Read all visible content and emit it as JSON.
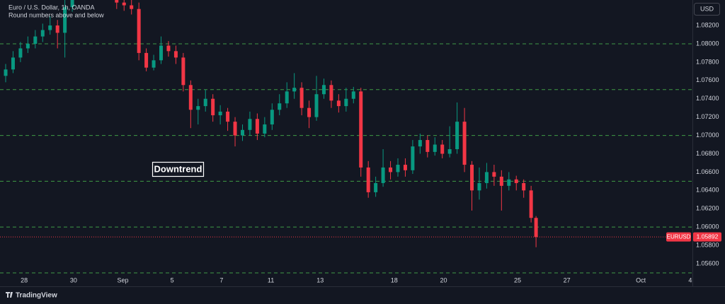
{
  "chart_data": {
    "type": "candlestick",
    "title": "Euro / U.S. Dollar, 1h, OANDA",
    "subtitle": "Round numbers above and below",
    "currency": "USD",
    "annotation": "Downtrend",
    "symbol": "EURUSD",
    "brand": "TradingView",
    "last_price": 1.05892,
    "up_color": "#089981",
    "down_color": "#f23645",
    "level_color": "#3f9a45",
    "last_price_color": "#f23645",
    "levels": [
      1.08,
      1.075,
      1.07,
      1.065,
      1.06,
      1.055
    ],
    "x": [
      -0.75,
      -0.45,
      -0.15,
      0.15,
      0.45,
      0.75,
      1.05,
      1.35,
      1.65,
      1.95,
      2.25,
      2.55,
      2.85,
      3.15,
      3.45,
      3.75,
      4.05,
      4.35,
      4.65,
      4.95,
      5.25,
      5.55,
      5.85,
      6.15,
      6.45,
      6.75,
      7.05,
      7.35,
      7.65,
      7.95,
      8.25,
      8.55,
      8.85,
      9.15,
      9.45,
      9.75,
      10.05,
      10.35,
      10.65,
      10.95,
      11.25,
      11.55,
      11.85,
      12.15,
      12.45,
      12.75,
      13.05,
      13.35,
      13.65,
      13.95,
      14.25,
      14.55,
      14.85,
      15.15,
      15.45,
      15.75,
      16.05,
      16.35,
      16.65,
      16.95,
      17.25,
      17.55,
      17.85,
      18.15,
      18.45,
      18.75,
      19.05,
      19.35,
      19.65,
      19.95,
      20.25,
      20.55,
      20.75
    ],
    "open": [
      1.0765,
      1.0772,
      1.0785,
      1.0795,
      1.08,
      1.0808,
      1.0815,
      1.082,
      1.0812,
      1.084,
      1.086,
      1.0865,
      1.087,
      1.0862,
      1.0868,
      1.0858,
      1.0845,
      1.0842,
      1.0838,
      1.079,
      1.0774,
      1.0782,
      1.0798,
      1.0792,
      1.0785,
      1.0755,
      1.0728,
      1.0732,
      1.074,
      1.0722,
      1.0726,
      1.0715,
      1.07,
      1.0706,
      1.0718,
      1.0702,
      1.0712,
      1.0728,
      1.0735,
      1.0748,
      1.0752,
      1.073,
      1.072,
      1.0745,
      1.0755,
      1.0738,
      1.0732,
      1.074,
      1.0748,
      1.0665,
      1.0638,
      1.0648,
      1.0665,
      1.066,
      1.0668,
      1.0662,
      1.0688,
      1.0695,
      1.0682,
      1.069,
      1.068,
      1.0685,
      1.0715,
      1.0668,
      1.064,
      1.0648,
      1.066,
      1.0655,
      1.0645,
      1.0652,
      1.0648,
      1.064,
      1.061
    ],
    "high": [
      1.0778,
      1.0792,
      1.0802,
      1.0808,
      1.0815,
      1.0822,
      1.083,
      1.0826,
      1.0852,
      1.0866,
      1.0872,
      1.0878,
      1.0875,
      1.0874,
      1.0872,
      1.0862,
      1.0852,
      1.085,
      1.0845,
      1.0795,
      1.0788,
      1.0808,
      1.0803,
      1.0798,
      1.079,
      1.076,
      1.074,
      1.075,
      1.0745,
      1.0733,
      1.073,
      1.072,
      1.0712,
      1.0726,
      1.0724,
      1.072,
      1.0735,
      1.0745,
      1.0758,
      1.0768,
      1.0758,
      1.0738,
      1.0765,
      1.0762,
      1.076,
      1.0745,
      1.0752,
      1.0753,
      1.0752,
      1.0672,
      1.0655,
      1.0685,
      1.0672,
      1.0675,
      1.0675,
      1.0695,
      1.0702,
      1.07,
      1.0698,
      1.0695,
      1.071,
      1.0736,
      1.073,
      1.0672,
      1.0665,
      1.067,
      1.0668,
      1.0662,
      1.066,
      1.0656,
      1.0652,
      1.0645,
      1.0612
    ],
    "low": [
      1.0758,
      1.0768,
      1.078,
      1.079,
      1.0795,
      1.0802,
      1.081,
      1.0795,
      1.0785,
      1.0835,
      1.0854,
      1.086,
      1.0856,
      1.0857,
      1.0852,
      1.0838,
      1.0836,
      1.0832,
      1.0782,
      1.077,
      1.0771,
      1.0778,
      1.0786,
      1.0778,
      1.0748,
      1.0708,
      1.0712,
      1.0726,
      1.0715,
      1.0712,
      1.0705,
      1.0688,
      1.0694,
      1.07,
      1.0695,
      1.0698,
      1.0706,
      1.0722,
      1.073,
      1.074,
      1.0722,
      1.0708,
      1.0716,
      1.074,
      1.073,
      1.0725,
      1.0726,
      1.0735,
      1.0655,
      1.0632,
      1.0633,
      1.0644,
      1.0652,
      1.0655,
      1.0655,
      1.0658,
      1.068,
      1.0676,
      1.0678,
      1.0675,
      1.0676,
      1.068,
      1.066,
      1.0618,
      1.063,
      1.0642,
      1.0645,
      1.0618,
      1.064,
      1.064,
      1.0632,
      1.0605,
      1.0578
    ],
    "close": [
      1.0772,
      1.0785,
      1.0795,
      1.08,
      1.0808,
      1.0815,
      1.082,
      1.0812,
      1.084,
      1.086,
      1.0865,
      1.087,
      1.0862,
      1.0868,
      1.0858,
      1.0845,
      1.0842,
      1.0838,
      1.079,
      1.0774,
      1.0782,
      1.0798,
      1.0792,
      1.0785,
      1.0755,
      1.0728,
      1.0732,
      1.074,
      1.0722,
      1.0726,
      1.0715,
      1.07,
      1.0706,
      1.0718,
      1.0702,
      1.0712,
      1.0728,
      1.0735,
      1.0748,
      1.0752,
      1.073,
      1.072,
      1.0745,
      1.0755,
      1.0738,
      1.0732,
      1.074,
      1.0748,
      1.0665,
      1.0638,
      1.0648,
      1.0665,
      1.066,
      1.0668,
      1.0662,
      1.0688,
      1.0695,
      1.0682,
      1.069,
      1.068,
      1.0685,
      1.0715,
      1.0668,
      1.064,
      1.0648,
      1.066,
      1.0655,
      1.0645,
      1.0652,
      1.0648,
      1.064,
      1.061,
      1.05892
    ],
    "xlim": [
      -0.98,
      27.09
    ],
    "ylim": [
      1.05469,
      1.08478
    ],
    "xticks": [
      {
        "value": 0,
        "label": "28"
      },
      {
        "value": 2,
        "label": "30"
      },
      {
        "value": 4,
        "label": "Sep"
      },
      {
        "value": 6,
        "label": "5"
      },
      {
        "value": 8,
        "label": "7"
      },
      {
        "value": 10,
        "label": "11"
      },
      {
        "value": 12,
        "label": "13"
      },
      {
        "value": 15,
        "label": "18"
      },
      {
        "value": 17,
        "label": "20"
      },
      {
        "value": 20,
        "label": "25"
      },
      {
        "value": 22,
        "label": "27"
      },
      {
        "value": 25,
        "label": "Oct"
      },
      {
        "value": 27,
        "label": "4"
      }
    ],
    "yticks": [
      {
        "value": 1.082,
        "label": "1.08200"
      },
      {
        "value": 1.08,
        "label": "1.08000"
      },
      {
        "value": 1.078,
        "label": "1.07800"
      },
      {
        "value": 1.076,
        "label": "1.07600"
      },
      {
        "value": 1.074,
        "label": "1.07400"
      },
      {
        "value": 1.072,
        "label": "1.07200"
      },
      {
        "value": 1.07,
        "label": "1.07000"
      },
      {
        "value": 1.068,
        "label": "1.06800"
      },
      {
        "value": 1.066,
        "label": "1.06600"
      },
      {
        "value": 1.064,
        "label": "1.06400"
      },
      {
        "value": 1.062,
        "label": "1.06200"
      },
      {
        "value": 1.06,
        "label": "1.06000"
      },
      {
        "value": 1.058,
        "label": "1.05800"
      },
      {
        "value": 1.056,
        "label": "1.05600"
      }
    ],
    "grid": false
  }
}
